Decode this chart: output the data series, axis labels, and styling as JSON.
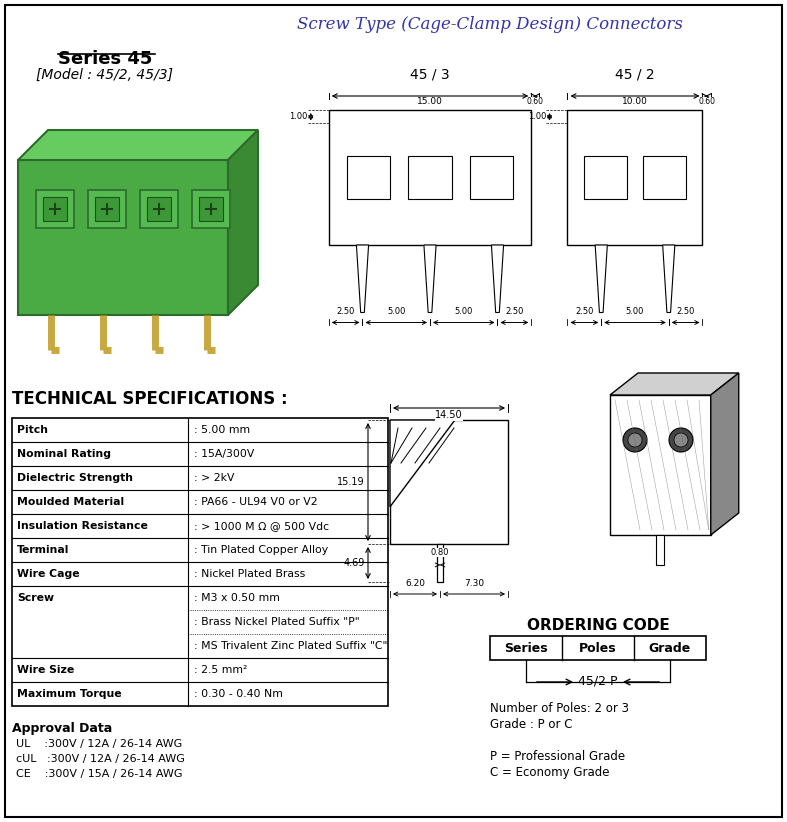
{
  "title": "Screw Type (Cage-Clamp Design) Connectors",
  "series_title": "Series 45",
  "model_text": "[Model : 45/2, 45/3]",
  "tech_spec_title": "TECHNICAL SPECIFICATIONS :",
  "spec_rows": [
    [
      "Pitch",
      ": 5.00 mm"
    ],
    [
      "Nominal Rating",
      ": 15A/300V"
    ],
    [
      "Dielectric Strength",
      ": > 2kV"
    ],
    [
      "Moulded Material",
      ": PA66 - UL94 V0 or V2"
    ],
    [
      "Insulation Resistance",
      ": > 1000 M Ω @ 500 Vdc"
    ],
    [
      "Terminal",
      ": Tin Plated Copper Alloy"
    ],
    [
      "Wire Cage",
      ": Nickel Plated Brass"
    ],
    [
      "Screw",
      ": M3 x 0.50 mm"
    ],
    [
      "",
      ": Brass Nickel Plated Suffix \"P\""
    ],
    [
      "",
      ": MS Trivalent Zinc Plated Suffix \"C\""
    ],
    [
      "Wire Size",
      ": 2.5 mm²"
    ],
    [
      "Maximum Torque",
      ": 0.30 - 0.40 Nm"
    ]
  ],
  "bold_rows": [
    0,
    1,
    2,
    3,
    4,
    5,
    6,
    7,
    10,
    11
  ],
  "screw_dotted_rows": [
    8,
    9
  ],
  "approval_title": "Approval Data",
  "approval_lines": [
    "UL    :300V / 12A / 26-14 AWG",
    "cUL   :300V / 12A / 26-14 AWG",
    "CE    :300V / 15A / 26-14 AWG"
  ],
  "ordering_title": "ORDERING CODE",
  "ordering_headers": [
    "Series",
    "Poles",
    "Grade"
  ],
  "ordering_example": "45/2 P",
  "ordering_notes": [
    "Number of Poles: 2 or 3",
    "Grade : P or C",
    "",
    "P = Professional Grade",
    "C = Economy Grade"
  ],
  "diag_45_3_label": "45 / 3",
  "diag_45_2_label": "45 / 2",
  "background_color": "#ffffff",
  "title_color": "#3333aa",
  "border_color": "#000000",
  "text_color": "#000000"
}
